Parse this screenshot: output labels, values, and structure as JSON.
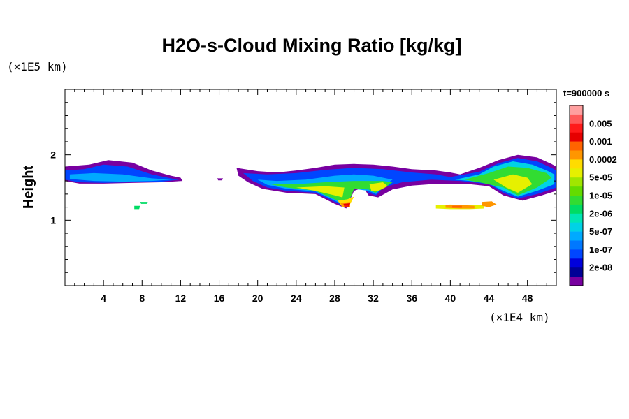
{
  "chart_data": {
    "type": "contour",
    "title": "H2O-s-Cloud Mixing Ratio [kg/kg]",
    "ylabel": "Height",
    "xlabel": "",
    "x_unit": "(×1E4 km)",
    "y_unit": "(×1E5 km)",
    "time_label": "t=900000 s",
    "xlim": [
      0,
      51
    ],
    "ylim": [
      0,
      3
    ],
    "x_ticks": [
      4,
      8,
      12,
      16,
      20,
      24,
      28,
      32,
      36,
      40,
      44,
      48
    ],
    "x_minor_step": 1,
    "y_ticks": [
      1,
      2
    ],
    "y_minor_step": 0.2,
    "levels": [
      {
        "label": "",
        "color": "#ffa0a0"
      },
      {
        "label": "0.005",
        "color": "#ff5a5a"
      },
      {
        "label": "",
        "color": "#ff1a1a"
      },
      {
        "label": "0.001",
        "color": "#e60000"
      },
      {
        "label": "",
        "color": "#ff6400"
      },
      {
        "label": "0.0002",
        "color": "#ff9600"
      },
      {
        "label": "",
        "color": "#ffdc00"
      },
      {
        "label": "5e-05",
        "color": "#e6f000"
      },
      {
        "label": "",
        "color": "#a0e600"
      },
      {
        "label": "1e-05",
        "color": "#64dc00"
      },
      {
        "label": "",
        "color": "#32dc32"
      },
      {
        "label": "2e-06",
        "color": "#00dc64"
      },
      {
        "label": "",
        "color": "#00e6b4"
      },
      {
        "label": "5e-07",
        "color": "#00d2e6"
      },
      {
        "label": "",
        "color": "#00aaff"
      },
      {
        "label": "1e-07",
        "color": "#0078ff"
      },
      {
        "label": "",
        "color": "#0046ff"
      },
      {
        "label": "2e-08",
        "color": "#0000dc"
      },
      {
        "label": "",
        "color": "#000096"
      },
      {
        "label": "",
        "color": "#7800a0"
      }
    ],
    "regions": [
      {
        "level": 19,
        "points": [
          [
            0,
            1.82
          ],
          [
            2.5,
            1.85
          ],
          [
            4.5,
            1.92
          ],
          [
            7,
            1.88
          ],
          [
            9,
            1.76
          ],
          [
            11,
            1.68
          ],
          [
            12,
            1.65
          ],
          [
            12.2,
            1.6
          ],
          [
            10,
            1.58
          ],
          [
            7,
            1.57
          ],
          [
            4,
            1.56
          ],
          [
            1.5,
            1.56
          ],
          [
            0,
            1.6
          ]
        ]
      },
      {
        "level": 16,
        "points": [
          [
            0,
            1.76
          ],
          [
            2,
            1.78
          ],
          [
            4,
            1.85
          ],
          [
            6.5,
            1.82
          ],
          [
            9,
            1.7
          ],
          [
            11,
            1.64
          ],
          [
            11.8,
            1.62
          ],
          [
            10,
            1.59
          ],
          [
            7,
            1.58
          ],
          [
            4,
            1.57
          ],
          [
            1.5,
            1.58
          ],
          [
            0,
            1.62
          ]
        ]
      },
      {
        "level": 14,
        "points": [
          [
            0.5,
            1.7
          ],
          [
            3,
            1.72
          ],
          [
            6,
            1.7
          ],
          [
            9,
            1.64
          ],
          [
            11,
            1.62
          ],
          [
            9,
            1.6
          ],
          [
            6,
            1.59
          ],
          [
            3,
            1.6
          ],
          [
            0.5,
            1.63
          ]
        ]
      },
      {
        "level": 19,
        "points": [
          [
            15.8,
            1.64
          ],
          [
            16.4,
            1.64
          ],
          [
            16.3,
            1.61
          ],
          [
            15.9,
            1.61
          ]
        ]
      },
      {
        "level": 19,
        "points": [
          [
            17.8,
            1.8
          ],
          [
            20,
            1.75
          ],
          [
            22,
            1.73
          ],
          [
            24,
            1.76
          ],
          [
            26,
            1.8
          ],
          [
            28,
            1.85
          ],
          [
            30,
            1.86
          ],
          [
            32,
            1.85
          ],
          [
            34,
            1.82
          ],
          [
            36,
            1.78
          ],
          [
            38.5,
            1.76
          ],
          [
            40,
            1.73
          ],
          [
            41,
            1.7
          ],
          [
            43,
            1.8
          ],
          [
            45,
            1.92
          ],
          [
            47,
            2.0
          ],
          [
            49,
            1.96
          ],
          [
            50.5,
            1.86
          ],
          [
            51,
            1.82
          ],
          [
            51,
            1.45
          ],
          [
            49.5,
            1.38
          ],
          [
            47.5,
            1.3
          ],
          [
            45.5,
            1.38
          ],
          [
            44,
            1.52
          ],
          [
            42,
            1.55
          ],
          [
            40,
            1.55
          ],
          [
            38,
            1.55
          ],
          [
            36,
            1.53
          ],
          [
            34,
            1.47
          ],
          [
            32.5,
            1.35
          ],
          [
            31.5,
            1.38
          ],
          [
            31,
            1.5
          ],
          [
            30,
            1.45
          ],
          [
            29.2,
            1.18
          ],
          [
            28,
            1.25
          ],
          [
            26,
            1.4
          ],
          [
            23,
            1.42
          ],
          [
            20.5,
            1.48
          ],
          [
            19,
            1.58
          ],
          [
            18,
            1.68
          ]
        ]
      },
      {
        "level": 16,
        "points": [
          [
            18.5,
            1.72
          ],
          [
            21,
            1.7
          ],
          [
            24,
            1.72
          ],
          [
            27,
            1.77
          ],
          [
            30,
            1.8
          ],
          [
            33,
            1.78
          ],
          [
            36,
            1.73
          ],
          [
            38.5,
            1.7
          ],
          [
            40,
            1.66
          ],
          [
            43,
            1.74
          ],
          [
            45,
            1.87
          ],
          [
            47,
            1.95
          ],
          [
            49,
            1.9
          ],
          [
            50.5,
            1.8
          ],
          [
            51,
            1.76
          ],
          [
            51,
            1.5
          ],
          [
            49,
            1.4
          ],
          [
            47,
            1.33
          ],
          [
            45.5,
            1.42
          ],
          [
            44,
            1.55
          ],
          [
            41,
            1.6
          ],
          [
            38,
            1.62
          ],
          [
            35,
            1.58
          ],
          [
            33,
            1.5
          ],
          [
            32.3,
            1.38
          ],
          [
            31.5,
            1.42
          ],
          [
            31,
            1.5
          ],
          [
            30,
            1.48
          ],
          [
            29.2,
            1.2
          ],
          [
            28,
            1.28
          ],
          [
            26,
            1.42
          ],
          [
            23,
            1.45
          ],
          [
            21,
            1.5
          ],
          [
            19.5,
            1.6
          ]
        ]
      },
      {
        "level": 14,
        "points": [
          [
            20,
            1.62
          ],
          [
            22,
            1.6
          ],
          [
            25,
            1.62
          ],
          [
            28,
            1.68
          ],
          [
            30,
            1.7
          ],
          [
            32,
            1.68
          ],
          [
            34,
            1.62
          ],
          [
            33,
            1.52
          ],
          [
            32.3,
            1.4
          ],
          [
            31.5,
            1.45
          ],
          [
            30,
            1.48
          ],
          [
            29.2,
            1.22
          ],
          [
            28,
            1.3
          ],
          [
            26,
            1.44
          ],
          [
            23,
            1.48
          ],
          [
            21,
            1.54
          ]
        ]
      },
      {
        "level": 13,
        "points": [
          [
            40.5,
            1.62
          ],
          [
            43,
            1.7
          ],
          [
            44.5,
            1.82
          ],
          [
            46.5,
            1.9
          ],
          [
            48.5,
            1.85
          ],
          [
            50,
            1.76
          ],
          [
            50.8,
            1.7
          ],
          [
            50.8,
            1.55
          ],
          [
            49,
            1.45
          ],
          [
            47,
            1.36
          ],
          [
            45.5,
            1.45
          ],
          [
            44,
            1.56
          ],
          [
            42,
            1.6
          ]
        ]
      },
      {
        "level": 10,
        "points": [
          [
            21,
            1.56
          ],
          [
            24,
            1.55
          ],
          [
            27,
            1.58
          ],
          [
            30,
            1.6
          ],
          [
            33,
            1.6
          ],
          [
            34,
            1.58
          ],
          [
            33,
            1.48
          ],
          [
            32.2,
            1.42
          ],
          [
            31.5,
            1.47
          ],
          [
            30,
            1.48
          ],
          [
            29.3,
            1.22
          ],
          [
            28,
            1.32
          ],
          [
            26,
            1.45
          ],
          [
            23,
            1.5
          ]
        ]
      },
      {
        "level": 10,
        "points": [
          [
            41.5,
            1.62
          ],
          [
            44,
            1.72
          ],
          [
            46,
            1.82
          ],
          [
            48,
            1.8
          ],
          [
            50,
            1.72
          ],
          [
            50.5,
            1.65
          ],
          [
            49,
            1.5
          ],
          [
            47,
            1.38
          ],
          [
            45.5,
            1.5
          ],
          [
            43,
            1.58
          ]
        ]
      },
      {
        "level": 7,
        "points": [
          [
            24,
            1.5
          ],
          [
            27,
            1.52
          ],
          [
            29,
            1.5
          ],
          [
            28.8,
            1.35
          ],
          [
            28,
            1.38
          ],
          [
            26,
            1.45
          ]
        ]
      },
      {
        "level": 7,
        "points": [
          [
            31.6,
            1.55
          ],
          [
            33,
            1.58
          ],
          [
            33.5,
            1.52
          ],
          [
            32.5,
            1.45
          ],
          [
            31.8,
            1.45
          ]
        ]
      },
      {
        "level": 7,
        "points": [
          [
            44.5,
            1.62
          ],
          [
            46.5,
            1.7
          ],
          [
            48,
            1.65
          ],
          [
            48.5,
            1.55
          ],
          [
            47,
            1.42
          ],
          [
            45.8,
            1.5
          ]
        ]
      },
      {
        "level": 6,
        "points": [
          [
            28.3,
            1.3
          ],
          [
            29.3,
            1.32
          ],
          [
            30,
            1.36
          ],
          [
            29.5,
            1.22
          ],
          [
            28.8,
            1.2
          ]
        ]
      },
      {
        "level": 5,
        "points": [
          [
            28.6,
            1.26
          ],
          [
            29.6,
            1.28
          ],
          [
            29.6,
            1.2
          ],
          [
            28.9,
            1.2
          ]
        ]
      },
      {
        "level": 3,
        "points": [
          [
            28.9,
            1.25
          ],
          [
            29.6,
            1.26
          ],
          [
            29.5,
            1.21
          ],
          [
            29.0,
            1.21
          ]
        ]
      },
      {
        "level": 2,
        "points": [
          [
            29.0,
            1.24
          ],
          [
            29.4,
            1.24
          ],
          [
            29.4,
            1.22
          ],
          [
            29.0,
            1.22
          ]
        ]
      },
      {
        "level": 7,
        "points": [
          [
            38.5,
            1.23
          ],
          [
            40,
            1.24
          ],
          [
            42,
            1.23
          ],
          [
            43.5,
            1.24
          ],
          [
            43.5,
            1.18
          ],
          [
            42,
            1.17
          ],
          [
            40,
            1.17
          ],
          [
            38.5,
            1.18
          ]
        ]
      },
      {
        "level": 5,
        "points": [
          [
            39.5,
            1.23
          ],
          [
            41.5,
            1.23
          ],
          [
            42.5,
            1.22
          ],
          [
            42.5,
            1.18
          ],
          [
            41,
            1.18
          ],
          [
            39.5,
            1.19
          ]
        ]
      },
      {
        "level": 5,
        "points": [
          [
            43.3,
            1.28
          ],
          [
            44.3,
            1.29
          ],
          [
            44.8,
            1.24
          ],
          [
            44,
            1.2
          ],
          [
            43.3,
            1.22
          ]
        ]
      },
      {
        "level": 4,
        "points": [
          [
            40.2,
            1.22
          ],
          [
            41.2,
            1.22
          ],
          [
            41.2,
            1.19
          ],
          [
            40.2,
            1.19
          ]
        ]
      },
      {
        "level": 11,
        "points": [
          [
            7.2,
            1.22
          ],
          [
            7.8,
            1.22
          ],
          [
            7.7,
            1.17
          ],
          [
            7.2,
            1.17
          ]
        ]
      },
      {
        "level": 11,
        "points": [
          [
            7.8,
            1.28
          ],
          [
            8.6,
            1.28
          ],
          [
            8.5,
            1.25
          ],
          [
            7.9,
            1.25
          ]
        ]
      }
    ]
  }
}
